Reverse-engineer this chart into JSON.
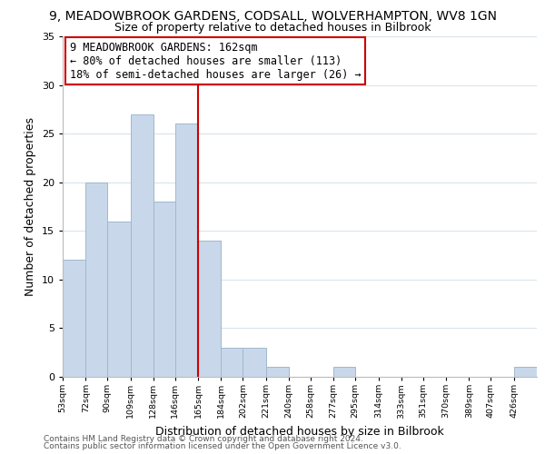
{
  "title": "9, MEADOWBROOK GARDENS, CODSALL, WOLVERHAMPTON, WV8 1GN",
  "subtitle": "Size of property relative to detached houses in Bilbrook",
  "xlabel": "Distribution of detached houses by size in Bilbrook",
  "ylabel": "Number of detached properties",
  "bins": [
    53,
    72,
    90,
    109,
    128,
    146,
    165,
    184,
    202,
    221,
    240,
    258,
    277,
    295,
    314,
    333,
    351,
    370,
    389,
    407,
    426
  ],
  "counts": [
    12,
    20,
    16,
    27,
    18,
    26,
    14,
    3,
    3,
    1,
    0,
    0,
    1,
    0,
    0,
    0,
    0,
    0,
    0,
    0,
    1
  ],
  "bar_color": "#c8d8ea",
  "bar_edge_color": "#a0b8cc",
  "vline_x": 165,
  "vline_color": "#cc0000",
  "ylim": [
    0,
    35
  ],
  "annotation_line1": "9 MEADOWBROOK GARDENS: 162sqm",
  "annotation_line2": "← 80% of detached houses are smaller (113)",
  "annotation_line3": "18% of semi-detached houses are larger (26) →",
  "annotation_box_color": "#ffffff",
  "annotation_box_edge": "#cc0000",
  "footer_line1": "Contains HM Land Registry data © Crown copyright and database right 2024.",
  "footer_line2": "Contains public sector information licensed under the Open Government Licence v3.0.",
  "bg_color": "#ffffff",
  "grid_color": "#d8e4ec",
  "title_fontsize": 10,
  "subtitle_fontsize": 9,
  "tick_labels": [
    "53sqm",
    "72sqm",
    "90sqm",
    "109sqm",
    "128sqm",
    "146sqm",
    "165sqm",
    "184sqm",
    "202sqm",
    "221sqm",
    "240sqm",
    "258sqm",
    "277sqm",
    "295sqm",
    "314sqm",
    "333sqm",
    "351sqm",
    "370sqm",
    "389sqm",
    "407sqm",
    "426sqm"
  ]
}
